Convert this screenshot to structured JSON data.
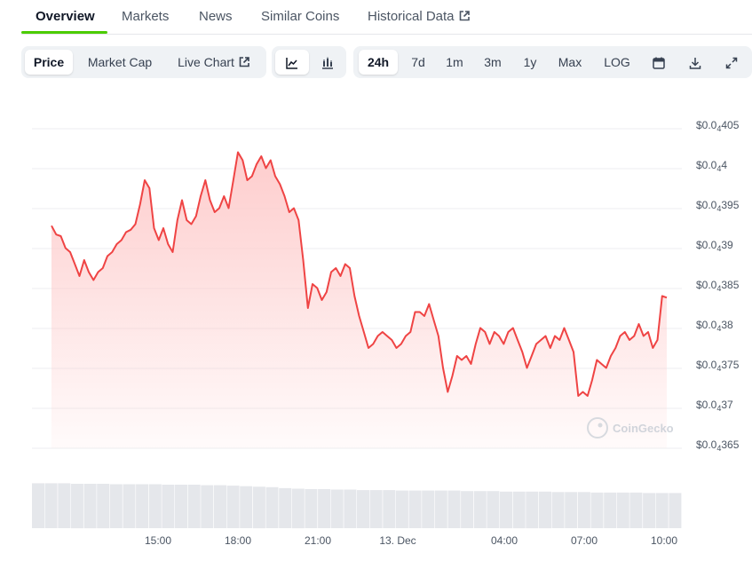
{
  "tabs": [
    {
      "label": "Overview",
      "active": true
    },
    {
      "label": "Markets",
      "active": false
    },
    {
      "label": "News",
      "active": false
    },
    {
      "label": "Similar Coins",
      "active": false
    },
    {
      "label": "Historical Data",
      "active": false,
      "external": true
    }
  ],
  "chart_type_buttons": [
    {
      "label": "Price",
      "active": true
    },
    {
      "label": "Market Cap",
      "active": false
    },
    {
      "label": "Live Chart",
      "active": false,
      "external": true
    }
  ],
  "view_toggle": [
    {
      "icon": "line-chart-icon",
      "active": true
    },
    {
      "icon": "candlestick-chart-icon",
      "active": false
    }
  ],
  "range_buttons": [
    {
      "label": "24h",
      "active": true
    },
    {
      "label": "7d",
      "active": false
    },
    {
      "label": "1m",
      "active": false
    },
    {
      "label": "3m",
      "active": false
    },
    {
      "label": "1y",
      "active": false
    },
    {
      "label": "Max",
      "active": false
    },
    {
      "label": "LOG",
      "active": false
    }
  ],
  "tool_icons": [
    "calendar-icon",
    "download-icon",
    "fullscreen-icon"
  ],
  "watermark": "CoinGecko",
  "colors": {
    "line": "#ef4444",
    "area_top": "#fecaca",
    "accent": "#4bcc00",
    "volume": "#e5e7eb"
  },
  "chart_data": {
    "type": "area",
    "title": "",
    "xlabel": "",
    "ylabel": "",
    "y_label_format": "$0.0₄ followed by the significant digits",
    "yticks": [
      {
        "prefix": "$0.0",
        "sub": "4",
        "digits": "405",
        "value": 405
      },
      {
        "prefix": "$0.0",
        "sub": "4",
        "digits": "4",
        "value": 400
      },
      {
        "prefix": "$0.0",
        "sub": "4",
        "digits": "395",
        "value": 395
      },
      {
        "prefix": "$0.0",
        "sub": "4",
        "digits": "39",
        "value": 390
      },
      {
        "prefix": "$0.0",
        "sub": "4",
        "digits": "385",
        "value": 385
      },
      {
        "prefix": "$0.0",
        "sub": "4",
        "digits": "38",
        "value": 380
      },
      {
        "prefix": "$0.0",
        "sub": "4",
        "digits": "375",
        "value": 375
      },
      {
        "prefix": "$0.0",
        "sub": "4",
        "digits": "37",
        "value": 370
      },
      {
        "prefix": "$0.0",
        "sub": "4",
        "digits": "365",
        "value": 365
      }
    ],
    "y_range": [
      365,
      405
    ],
    "x_range_hours": [
      11.0,
      10.1
    ],
    "xticks": [
      {
        "label": "15:00",
        "hour": 15
      },
      {
        "label": "18:00",
        "hour": 18
      },
      {
        "label": "21:00",
        "hour": 21
      },
      {
        "label": "13. Dec",
        "hour": 24
      },
      {
        "label": "04:00",
        "hour": 28
      },
      {
        "label": "07:00",
        "hour": 31
      },
      {
        "label": "10:00",
        "hour": 34
      }
    ],
    "x_start_hour": 11.0,
    "x_end_hour": 34.1,
    "series": [
      {
        "values": [
          392.3,
          391.2,
          391.0,
          389.5,
          389.0,
          387.5,
          386.0,
          388.0,
          386.5,
          385.5,
          386.5,
          387.0,
          388.5,
          389.0,
          390.0,
          390.5,
          391.5,
          391.8,
          392.5,
          395.0,
          398.0,
          397.0,
          392.0,
          390.5,
          392.0,
          390.0,
          389.0,
          393.0,
          395.5,
          393.0,
          392.5,
          393.5,
          396.0,
          398.0,
          395.5,
          394.0,
          394.5,
          396.0,
          394.5,
          398.0,
          401.5,
          400.5,
          398.0,
          398.5,
          400.0,
          401.0,
          399.5,
          400.5,
          398.5,
          397.5,
          396.0,
          394.0,
          394.5,
          393.0,
          388.0,
          382.0,
          385.0,
          384.5,
          383.0,
          384.0,
          386.5,
          387.0,
          386.0,
          387.5,
          387.0,
          383.5,
          381.0,
          379.0,
          377.0,
          377.5,
          378.5,
          379.0,
          378.5,
          378.0,
          377.0,
          377.5,
          378.5,
          379.0,
          381.5,
          381.5,
          381.0,
          382.5,
          380.5,
          378.5,
          374.5,
          371.5,
          373.5,
          376.0,
          375.5,
          376.0,
          375.0,
          377.5,
          379.5,
          379.0,
          377.5,
          379.0,
          378.5,
          377.5,
          379.0,
          379.5,
          378.0,
          376.5,
          374.5,
          376.0,
          377.5,
          378.0,
          378.5,
          377.0,
          378.5,
          378.0,
          379.5,
          378.0,
          376.5,
          371.0,
          371.5,
          371.0,
          373.0,
          375.5,
          375.0,
          374.5,
          376.0,
          377.0,
          378.5,
          379.0,
          378.0,
          378.5,
          380.0,
          378.5,
          379.0,
          377.0,
          378.0,
          383.5,
          383.3
        ]
      }
    ],
    "volume_relative": [
      0.92,
      0.92,
      0.92,
      0.91,
      0.91,
      0.91,
      0.9,
      0.9,
      0.9,
      0.9,
      0.89,
      0.89,
      0.89,
      0.88,
      0.88,
      0.87,
      0.86,
      0.85,
      0.84,
      0.82,
      0.81,
      0.8,
      0.8,
      0.79,
      0.79,
      0.78,
      0.78,
      0.78,
      0.77,
      0.77,
      0.77,
      0.77,
      0.77,
      0.76,
      0.76,
      0.76,
      0.75,
      0.75,
      0.75,
      0.75,
      0.74,
      0.74,
      0.74,
      0.73,
      0.73,
      0.73,
      0.73,
      0.72,
      0.72,
      0.72
    ]
  }
}
